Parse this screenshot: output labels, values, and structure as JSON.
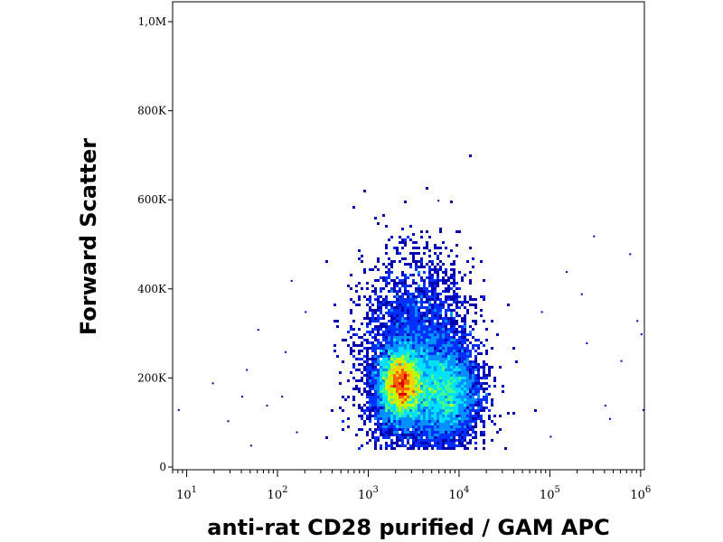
{
  "chart_data": {
    "type": "scatter",
    "title": "",
    "xlabel": "anti-rat CD28 purified / GAM APC",
    "ylabel": "Forward Scatter",
    "x_scale": "log",
    "xlim": [
      7,
      1100000
    ],
    "ylim": [
      0,
      1050000
    ],
    "x_ticks": [
      {
        "value": 10,
        "base": "10",
        "exp": "1"
      },
      {
        "value": 100,
        "base": "10",
        "exp": "2"
      },
      {
        "value": 1000,
        "base": "10",
        "exp": "3"
      },
      {
        "value": 10000,
        "base": "10",
        "exp": "4"
      },
      {
        "value": 100000,
        "base": "10",
        "exp": "5"
      },
      {
        "value": 1000000,
        "base": "10",
        "exp": "6"
      }
    ],
    "y_ticks": [
      {
        "value": 0,
        "label": "0"
      },
      {
        "value": 200000,
        "label": "200K"
      },
      {
        "value": 400000,
        "label": "400K"
      },
      {
        "value": 600000,
        "label": "600K"
      },
      {
        "value": 800000,
        "label": "800K"
      },
      {
        "value": 1000000,
        "label": "1,0M"
      }
    ],
    "grid": false,
    "legend": "none",
    "density_colors": [
      "#0000b0",
      "#0030ff",
      "#0090ff",
      "#00e0ff",
      "#40ff90",
      "#c0ff00",
      "#ffd000",
      "#ff6000",
      "#e00000"
    ],
    "populations": [
      {
        "x_center": 2300,
        "y_center": 185000,
        "x_spread_decades": 0.12,
        "y_spread": 40000,
        "density": 1.0
      },
      {
        "x_center": 3500,
        "y_center": 230000,
        "x_spread_decades": 0.3,
        "y_spread": 110000,
        "density": 0.6
      },
      {
        "x_center": 7000,
        "y_center": 165000,
        "x_spread_decades": 0.18,
        "y_spread": 50000,
        "density": 0.55
      }
    ],
    "outliers": [
      {
        "x": 8,
        "y": 130000
      },
      {
        "x": 19,
        "y": 190000
      },
      {
        "x": 28,
        "y": 105000
      },
      {
        "x": 45,
        "y": 220000
      },
      {
        "x": 50,
        "y": 50000
      },
      {
        "x": 60,
        "y": 310000
      },
      {
        "x": 75,
        "y": 140000
      },
      {
        "x": 110,
        "y": 160000
      },
      {
        "x": 120,
        "y": 260000
      },
      {
        "x": 140,
        "y": 420000
      },
      {
        "x": 160,
        "y": 80000
      },
      {
        "x": 200,
        "y": 350000
      },
      {
        "x": 5800,
        "y": 600000
      },
      {
        "x": 150000,
        "y": 440000
      },
      {
        "x": 220000,
        "y": 390000
      },
      {
        "x": 300000,
        "y": 520000
      },
      {
        "x": 400000,
        "y": 140000
      },
      {
        "x": 450000,
        "y": 110000
      },
      {
        "x": 750000,
        "y": 480000
      },
      {
        "x": 900000,
        "y": 330000
      },
      {
        "x": 1000000,
        "y": 300000
      },
      {
        "x": 1050000,
        "y": 130000
      },
      {
        "x": 100000,
        "y": 70000
      },
      {
        "x": 250000,
        "y": 280000
      },
      {
        "x": 600000,
        "y": 240000
      },
      {
        "x": 80000,
        "y": 350000
      },
      {
        "x": 40,
        "y": 160000
      }
    ]
  }
}
